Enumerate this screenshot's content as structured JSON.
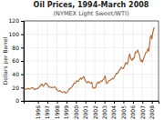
{
  "chart_data": {
    "type": "line",
    "title": "Oil Prices, 1994-March 2008",
    "subtitle": "(NYMEX Light Sweet/WTI)",
    "ylabel": "Dollars per Barrel",
    "color": "#b87040",
    "grid": true,
    "xlim": [
      1994.5,
      2008.7
    ],
    "xticks": [
      1996,
      1997,
      1998,
      1999,
      2000,
      2001,
      2002,
      2003,
      2004,
      2005,
      2006,
      2007,
      2008
    ],
    "ylim": [
      0,
      120
    ],
    "yticks": [
      0,
      20,
      40,
      60,
      80,
      100,
      120
    ],
    "x": [
      1994.58,
      1994.67,
      1994.75,
      1994.83,
      1994.92,
      1995.0,
      1995.08,
      1995.17,
      1995.25,
      1995.33,
      1995.42,
      1995.5,
      1995.58,
      1995.67,
      1995.75,
      1995.83,
      1995.92,
      1996.0,
      1996.08,
      1996.17,
      1996.25,
      1996.33,
      1996.42,
      1996.5,
      1996.58,
      1996.67,
      1996.75,
      1996.83,
      1996.92,
      1997.0,
      1997.08,
      1997.17,
      1997.25,
      1997.33,
      1997.42,
      1997.5,
      1997.58,
      1997.67,
      1997.75,
      1997.83,
      1997.92,
      1998.0,
      1998.08,
      1998.17,
      1998.25,
      1998.33,
      1998.42,
      1998.5,
      1998.58,
      1998.67,
      1998.75,
      1998.83,
      1998.92,
      1999.0,
      1999.08,
      1999.17,
      1999.25,
      1999.33,
      1999.42,
      1999.5,
      1999.58,
      1999.67,
      1999.75,
      1999.83,
      1999.92,
      2000.0,
      2000.08,
      2000.17,
      2000.25,
      2000.33,
      2000.42,
      2000.5,
      2000.58,
      2000.67,
      2000.75,
      2000.83,
      2000.92,
      2001.0,
      2001.08,
      2001.17,
      2001.25,
      2001.33,
      2001.42,
      2001.5,
      2001.58,
      2001.67,
      2001.75,
      2001.83,
      2001.92,
      2002.0,
      2002.08,
      2002.17,
      2002.25,
      2002.33,
      2002.42,
      2002.5,
      2002.58,
      2002.67,
      2002.75,
      2002.83,
      2002.92,
      2003.0,
      2003.08,
      2003.17,
      2003.25,
      2003.33,
      2003.42,
      2003.5,
      2003.58,
      2003.67,
      2003.75,
      2003.83,
      2003.92,
      2004.0,
      2004.08,
      2004.17,
      2004.25,
      2004.33,
      2004.42,
      2004.5,
      2004.58,
      2004.67,
      2004.75,
      2004.83,
      2004.92,
      2005.0,
      2005.08,
      2005.17,
      2005.25,
      2005.33,
      2005.42,
      2005.5,
      2005.58,
      2005.67,
      2005.75,
      2005.83,
      2005.92,
      2006.0,
      2006.08,
      2006.17,
      2006.25,
      2006.33,
      2006.42,
      2006.5,
      2006.58,
      2006.67,
      2006.75,
      2006.83,
      2006.92,
      2007.0,
      2007.08,
      2007.17,
      2007.25,
      2007.33,
      2007.42,
      2007.5,
      2007.58,
      2007.67,
      2007.75,
      2007.83,
      2007.92,
      2008.0,
      2008.08,
      2008.17,
      2008.25
    ],
    "values": [
      17.0,
      17.5,
      17.3,
      18.0,
      18.5,
      18.8,
      17.5,
      18.0,
      18.5,
      19.5,
      20.0,
      19.5,
      17.5,
      17.0,
      17.5,
      18.0,
      18.5,
      18.5,
      20.0,
      21.5,
      22.5,
      24.5,
      25.5,
      22.5,
      22.0,
      24.0,
      25.5,
      26.5,
      26.0,
      24.5,
      22.5,
      21.0,
      20.5,
      20.5,
      20.0,
      20.5,
      20.0,
      20.5,
      21.0,
      20.5,
      18.5,
      16.5,
      15.5,
      14.5,
      14.5,
      15.5,
      14.0,
      13.5,
      12.5,
      13.5,
      14.5,
      13.5,
      11.5,
      12.0,
      13.0,
      14.5,
      17.0,
      18.5,
      18.5,
      20.0,
      21.0,
      23.0,
      25.0,
      27.0,
      26.5,
      27.5,
      30.5,
      29.5,
      29.0,
      31.5,
      33.0,
      34.5,
      32.5,
      33.5,
      35.0,
      36.5,
      33.0,
      30.0,
      28.5,
      27.0,
      28.0,
      29.5,
      28.0,
      27.0,
      26.5,
      28.0,
      22.0,
      19.0,
      19.5,
      19.5,
      20.5,
      25.5,
      27.0,
      28.5,
      26.5,
      27.5,
      29.5,
      30.0,
      29.5,
      31.5,
      32.5,
      35.0,
      37.5,
      28.5,
      26.0,
      27.5,
      29.0,
      30.5,
      31.0,
      31.5,
      32.5,
      33.5,
      33.0,
      34.5,
      36.5,
      38.5,
      41.5,
      41.0,
      42.0,
      44.5,
      46.5,
      47.5,
      50.5,
      49.5,
      49.0,
      48.5,
      51.5,
      54.5,
      57.5,
      56.5,
      55.0,
      59.5,
      67.0,
      70.5,
      65.0,
      62.0,
      61.0,
      64.0,
      63.0,
      66.5,
      73.5,
      72.5,
      73.5,
      76.5,
      72.5,
      70.0,
      64.0,
      59.5,
      61.5,
      58.0,
      61.5,
      65.5,
      68.0,
      72.0,
      72.5,
      74.5,
      78.5,
      74.5,
      83.5,
      95.5,
      98.0,
      93.0,
      101.0,
      107.0,
      110.0
    ]
  }
}
